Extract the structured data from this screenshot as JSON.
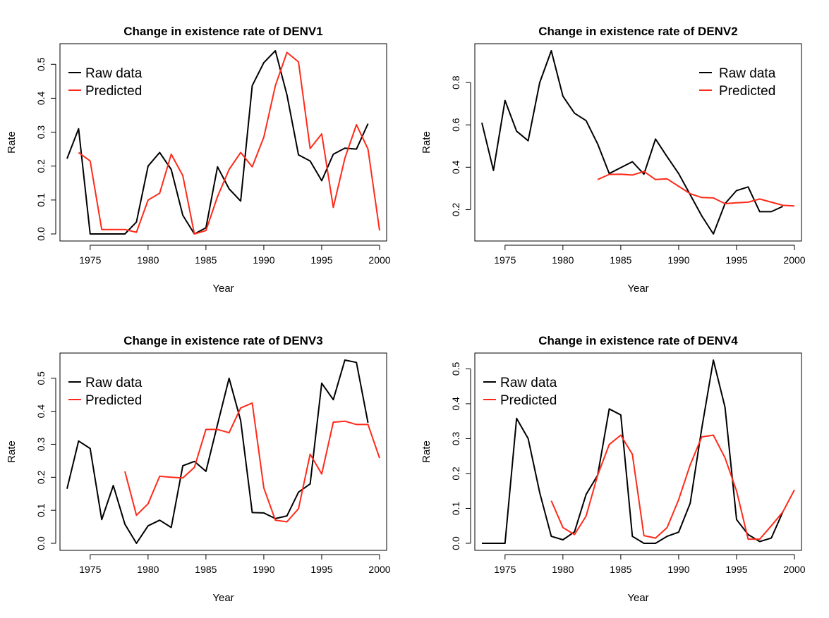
{
  "chart_data": [
    {
      "type": "line",
      "title": "Change in existence rate of DENV1",
      "xlabel": "Year",
      "ylabel": "Rate",
      "xlim": [
        1973,
        2000
      ],
      "ylim": [
        0,
        0.54
      ],
      "xticks": [
        1975,
        1980,
        1985,
        1990,
        1995,
        2000
      ],
      "yticks": [
        "0.0",
        "0.1",
        "0.2",
        "0.3",
        "0.4",
        "0.5"
      ],
      "legend_position": "top-left",
      "series": [
        {
          "name": "Raw data",
          "color": "#000000",
          "x": [
            1973,
            1974,
            1975,
            1976,
            1977,
            1978,
            1979,
            1980,
            1981,
            1982,
            1983,
            1984,
            1985,
            1986,
            1987,
            1988,
            1989,
            1990,
            1991,
            1992,
            1993,
            1994,
            1995,
            1996,
            1997,
            1998,
            1999
          ],
          "y": [
            0.222,
            0.31,
            0.0,
            0.0,
            0.0,
            0.0,
            0.035,
            0.2,
            0.24,
            0.19,
            0.055,
            0.0,
            0.018,
            0.198,
            0.133,
            0.097,
            0.437,
            0.505,
            0.54,
            0.41,
            0.233,
            0.215,
            0.157,
            0.235,
            0.253,
            0.25,
            0.325
          ]
        },
        {
          "name": "Predicted",
          "color": "#ff2a1a",
          "x": [
            1974,
            1975,
            1976,
            1977,
            1978,
            1979,
            1980,
            1981,
            1982,
            1983,
            1984,
            1985,
            1986,
            1987,
            1988,
            1989,
            1990,
            1991,
            1992,
            1993,
            1994,
            1995,
            1996,
            1997,
            1998,
            1999,
            2000
          ],
          "y": [
            0.24,
            0.215,
            0.013,
            0.013,
            0.013,
            0.005,
            0.1,
            0.12,
            0.235,
            0.172,
            0.0,
            0.01,
            0.11,
            0.19,
            0.24,
            0.198,
            0.285,
            0.437,
            0.535,
            0.507,
            0.252,
            0.295,
            0.078,
            0.223,
            0.322,
            0.25,
            0.01
          ]
        }
      ]
    },
    {
      "type": "line",
      "title": "Change in existence rate of DENV2",
      "xlabel": "Year",
      "ylabel": "Rate",
      "xlim": [
        1973,
        2000
      ],
      "ylim": [
        0.085,
        0.95
      ],
      "xticks": [
        1975,
        1980,
        1985,
        1990,
        1995,
        2000
      ],
      "yticks": [
        "0.2",
        "0.4",
        "0.6",
        "0.8"
      ],
      "legend_position": "top-right",
      "series": [
        {
          "name": "Raw data",
          "color": "#000000",
          "x": [
            1973,
            1974,
            1975,
            1976,
            1977,
            1978,
            1979,
            1980,
            1981,
            1982,
            1983,
            1984,
            1985,
            1986,
            1987,
            1988,
            1989,
            1990,
            1991,
            1992,
            1993,
            1994,
            1995,
            1996,
            1997,
            1998,
            1999
          ],
          "y": [
            0.61,
            0.385,
            0.715,
            0.57,
            0.525,
            0.8,
            0.95,
            0.735,
            0.655,
            0.62,
            0.51,
            0.37,
            0.398,
            0.426,
            0.367,
            0.533,
            0.45,
            0.37,
            0.27,
            0.17,
            0.085,
            0.228,
            0.29,
            0.307,
            0.19,
            0.19,
            0.215
          ]
        },
        {
          "name": "Predicted",
          "color": "#ff2a1a",
          "x": [
            1983,
            1984,
            1985,
            1986,
            1987,
            1988,
            1989,
            1990,
            1991,
            1992,
            1993,
            1994,
            1995,
            1996,
            1997,
            1998,
            1999,
            2000
          ],
          "y": [
            0.342,
            0.366,
            0.367,
            0.363,
            0.38,
            0.342,
            0.345,
            0.31,
            0.275,
            0.257,
            0.255,
            0.228,
            0.232,
            0.235,
            0.25,
            0.235,
            0.22,
            0.217
          ]
        }
      ]
    },
    {
      "type": "line",
      "title": "Change in existence rate of DENV3",
      "xlabel": "Year",
      "ylabel": "Rate",
      "xlim": [
        1973,
        2000
      ],
      "ylim": [
        0,
        0.555
      ],
      "xticks": [
        1975,
        1980,
        1985,
        1990,
        1995,
        2000
      ],
      "yticks": [
        "0.0",
        "0.1",
        "0.2",
        "0.3",
        "0.4",
        "0.5"
      ],
      "legend_position": "top-left",
      "series": [
        {
          "name": "Raw data",
          "color": "#000000",
          "x": [
            1973,
            1974,
            1975,
            1976,
            1977,
            1978,
            1979,
            1980,
            1981,
            1982,
            1983,
            1984,
            1985,
            1986,
            1987,
            1988,
            1989,
            1990,
            1991,
            1992,
            1993,
            1994,
            1995,
            1996,
            1997,
            1998,
            1999
          ],
          "y": [
            0.165,
            0.31,
            0.287,
            0.072,
            0.175,
            0.058,
            0.0,
            0.053,
            0.07,
            0.048,
            0.235,
            0.248,
            0.218,
            0.36,
            0.5,
            0.372,
            0.093,
            0.092,
            0.075,
            0.083,
            0.155,
            0.18,
            0.485,
            0.435,
            0.555,
            0.548,
            0.365
          ]
        },
        {
          "name": "Predicted",
          "color": "#ff2a1a",
          "x": [
            1978,
            1979,
            1980,
            1981,
            1982,
            1983,
            1984,
            1985,
            1986,
            1987,
            1988,
            1989,
            1990,
            1991,
            1992,
            1993,
            1994,
            1995,
            1996,
            1997,
            1998,
            1999,
            2000
          ],
          "y": [
            0.218,
            0.085,
            0.12,
            0.203,
            0.2,
            0.198,
            0.23,
            0.345,
            0.345,
            0.335,
            0.41,
            0.425,
            0.168,
            0.07,
            0.065,
            0.105,
            0.27,
            0.21,
            0.367,
            0.37,
            0.36,
            0.36,
            0.258
          ]
        }
      ]
    },
    {
      "type": "line",
      "title": "Change in existence rate of DENV4",
      "xlabel": "Year",
      "ylabel": "Rate",
      "xlim": [
        1973,
        2000
      ],
      "ylim": [
        0,
        0.525
      ],
      "xticks": [
        1975,
        1980,
        1985,
        1990,
        1995,
        2000
      ],
      "yticks": [
        "0.0",
        "0.1",
        "0.2",
        "0.3",
        "0.4",
        "0.5"
      ],
      "legend_position": "top-left",
      "series": [
        {
          "name": "Raw data",
          "color": "#000000",
          "x": [
            1973,
            1974,
            1975,
            1976,
            1977,
            1978,
            1979,
            1980,
            1981,
            1982,
            1983,
            1984,
            1985,
            1986,
            1987,
            1988,
            1989,
            1990,
            1991,
            1992,
            1993,
            1994,
            1995,
            1996,
            1997,
            1998,
            1999
          ],
          "y": [
            0.0,
            0.0,
            0.0,
            0.358,
            0.3,
            0.145,
            0.02,
            0.01,
            0.033,
            0.14,
            0.195,
            0.385,
            0.368,
            0.02,
            0.0,
            0.0,
            0.02,
            0.032,
            0.115,
            0.33,
            0.525,
            0.39,
            0.068,
            0.025,
            0.005,
            0.015,
            0.09
          ]
        },
        {
          "name": "Predicted",
          "color": "#ff2a1a",
          "x": [
            1979,
            1980,
            1981,
            1982,
            1983,
            1984,
            1985,
            1986,
            1987,
            1988,
            1989,
            1990,
            1991,
            1992,
            1993,
            1994,
            1995,
            1996,
            1997,
            1998,
            1999,
            2000
          ],
          "y": [
            0.122,
            0.045,
            0.025,
            0.078,
            0.195,
            0.283,
            0.31,
            0.255,
            0.022,
            0.015,
            0.045,
            0.125,
            0.225,
            0.305,
            0.31,
            0.245,
            0.15,
            0.012,
            0.012,
            0.05,
            0.09,
            0.153
          ]
        }
      ]
    }
  ]
}
